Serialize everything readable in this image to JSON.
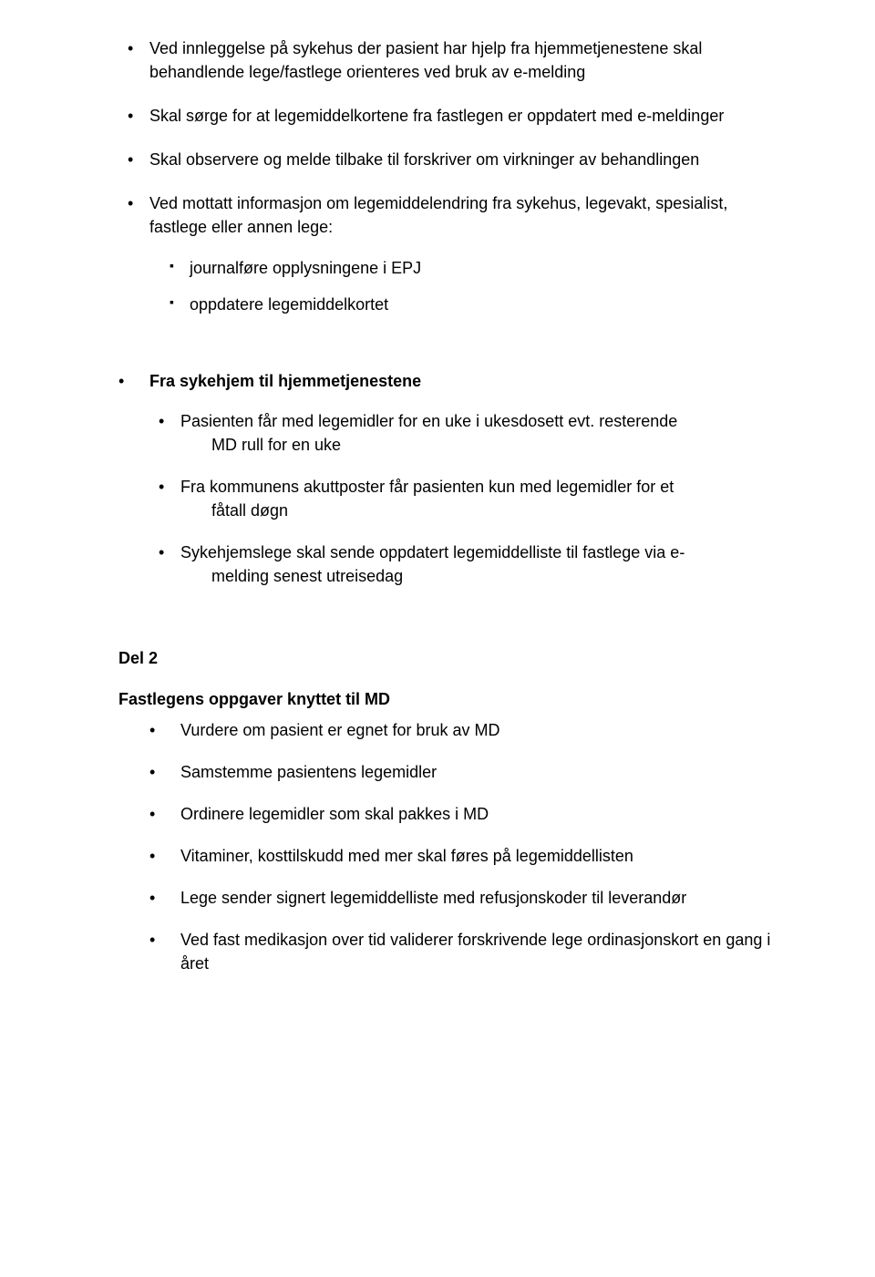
{
  "top": {
    "items": [
      "Ved innleggelse på sykehus der pasient har hjelp fra hjemmetjenestene skal behandlende lege/fastlege orienteres ved bruk av e-melding",
      "Skal sørge for at legemiddelkortene fra fastlegen er oppdatert med e-meldinger",
      "Skal observere og melde tilbake til forskriver om virkninger av behandlingen",
      "Ved mottatt informasjon om legemiddelendring fra sykehus, legevakt, spesialist, fastlege eller annen lege:"
    ],
    "sub": [
      "journalføre opplysningene i EPJ",
      "oppdatere legemiddelkortet"
    ]
  },
  "section": {
    "heading": "Fra sykehjem til hjemmetjenestene",
    "items": [
      {
        "line1": "Pasienten får med legemidler for en uke i ukesdosett evt. resterende",
        "line2": "MD rull for en uke"
      },
      {
        "line1": "Fra kommunens akuttposter får pasienten kun med legemidler for et",
        "line2": "fåtall døgn"
      },
      {
        "line1": "Sykehjemslege skal sende oppdatert legemiddelliste til fastlege via e-",
        "line2": "melding senest utreisedag"
      }
    ]
  },
  "del2": {
    "title": "Del 2",
    "subtitle": "Fastlegens oppgaver knyttet til MD",
    "items": [
      "Vurdere om pasient er egnet for bruk av MD",
      "Samstemme pasientens legemidler",
      "Ordinere legemidler som skal pakkes i MD",
      "Vitaminer, kosttilskudd med mer skal føres på legemiddellisten",
      "Lege sender signert legemiddelliste med refusjonskoder til leverandør",
      "Ved fast medikasjon over tid validerer forskrivende lege ordinasjonskort en gang i året"
    ]
  }
}
